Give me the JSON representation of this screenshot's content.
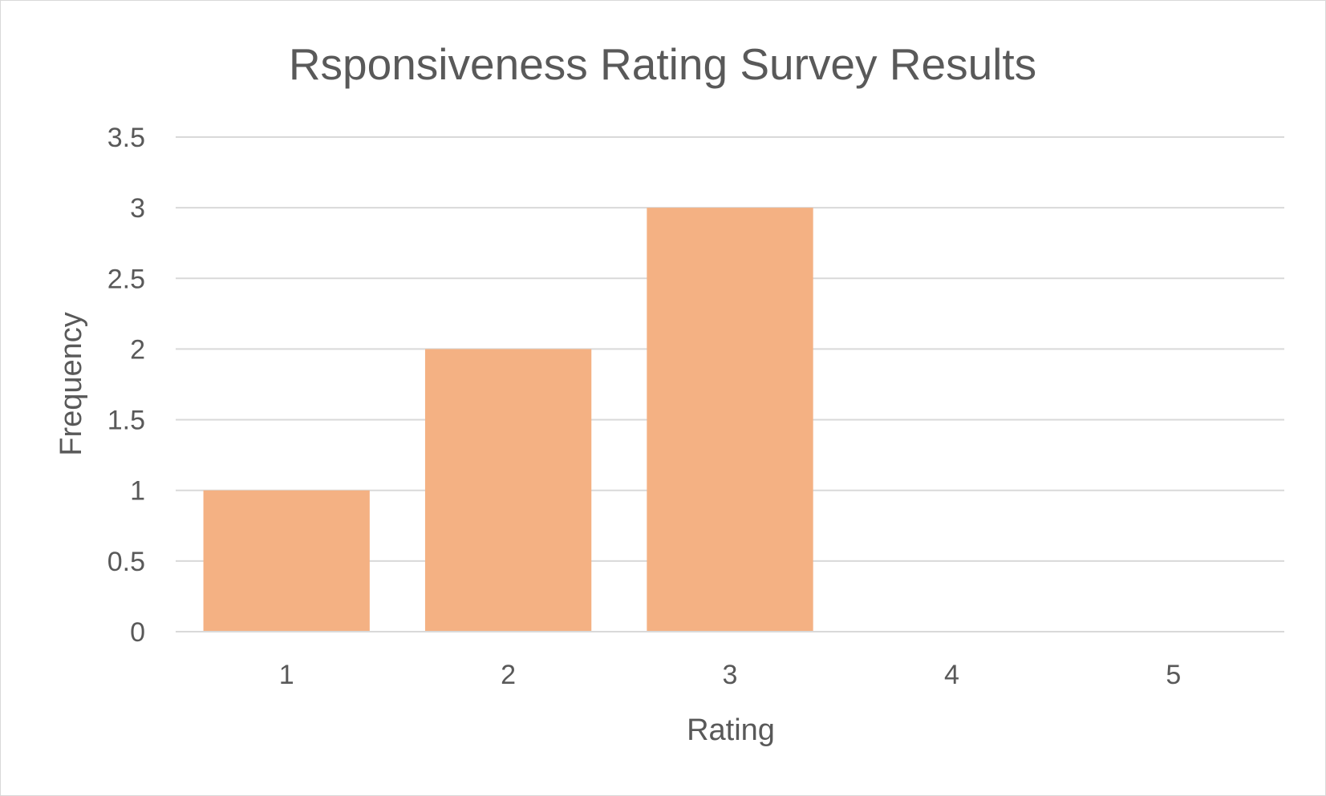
{
  "chart_data": {
    "type": "bar",
    "title": "Rsponsiveness Rating Survey Results",
    "xlabel": "Rating",
    "ylabel": "Frequency",
    "categories": [
      "1",
      "2",
      "3",
      "4",
      "5"
    ],
    "values": [
      1,
      2,
      3,
      0,
      0
    ],
    "ylim": [
      0,
      3.5
    ],
    "yticks": [
      "0",
      "0.5",
      "1",
      "1.5",
      "2",
      "2.5",
      "3",
      "3.5"
    ],
    "grid": true,
    "legend": "none",
    "bar_color": "#F4B183"
  }
}
